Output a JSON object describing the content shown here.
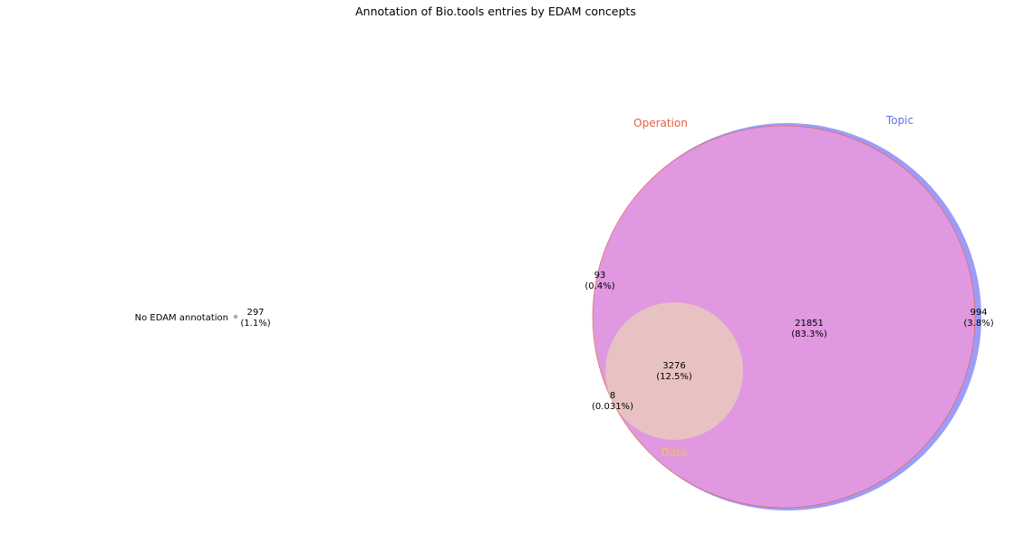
{
  "chart_data": {
    "type": "venn",
    "title": "Annotation of Bio.tools entries by EDAM concepts",
    "sets": [
      {
        "name": "Operation",
        "color": "#e8603c"
      },
      {
        "name": "Topic",
        "color": "#6670e8"
      },
      {
        "name": "Data",
        "color": "#f0c060"
      }
    ],
    "colors": {
      "union_fill": "#e098e0",
      "topic_edge": "#9c9cf8",
      "data_fill": "#e8c2c2",
      "outside_dot": "#aaaaaa"
    },
    "regions": [
      {
        "sets": [
          "Operation",
          "Topic"
        ],
        "count": "21851",
        "percent": "(83.3%)"
      },
      {
        "sets": [
          "Operation",
          "Topic",
          "Data"
        ],
        "count": "3276",
        "percent": "(12.5%)"
      },
      {
        "sets": [
          "Topic"
        ],
        "count": "994",
        "percent": "(3.8%)"
      },
      {
        "sets": [
          "Operation"
        ],
        "count": "93",
        "percent": "(0.4%)"
      },
      {
        "sets": [
          "Operation",
          "Data"
        ],
        "count": "8",
        "percent": "(0.031%)"
      }
    ],
    "outside": {
      "label": "No EDAM annotation",
      "count": "297",
      "percent": "(1.1%)"
    }
  }
}
